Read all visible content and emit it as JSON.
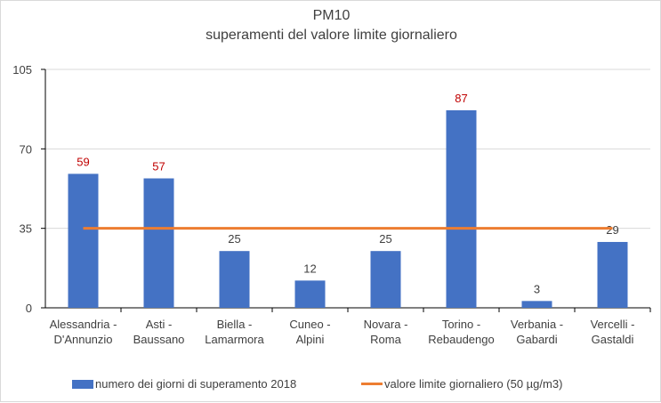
{
  "chart_data": {
    "type": "bar",
    "title": "PM10",
    "subtitle": "superamenti del valore limite giornaliero",
    "categories": [
      [
        "Alessandria -",
        "D'Annunzio"
      ],
      [
        "Asti -",
        "Baussano"
      ],
      [
        "Biella -",
        "Lamarmora"
      ],
      [
        "Cuneo -",
        "Alpini"
      ],
      [
        "Novara -",
        "Roma"
      ],
      [
        "Torino -",
        "Rebaudengo"
      ],
      [
        "Verbania -",
        "Gabardi"
      ],
      [
        "Vercelli -",
        "Gastaldi"
      ]
    ],
    "series": [
      {
        "name": "numero dei giorni di superamento 2018",
        "type": "bar",
        "values": [
          59,
          57,
          25,
          12,
          25,
          87,
          3,
          29
        ],
        "color": "#4472c4"
      },
      {
        "name": "valore limite giornaliero (50 µg/m3)",
        "type": "line",
        "values": [
          35,
          35,
          35,
          35,
          35,
          35,
          35,
          35
        ],
        "color": "#ed7d31"
      }
    ],
    "label_colors": {
      "above_limit": "#c00000",
      "below_limit": "#404040"
    },
    "ylim": [
      0,
      105
    ],
    "yticks": [
      0,
      35,
      70,
      105
    ],
    "grid": true,
    "legend": "bottom"
  }
}
